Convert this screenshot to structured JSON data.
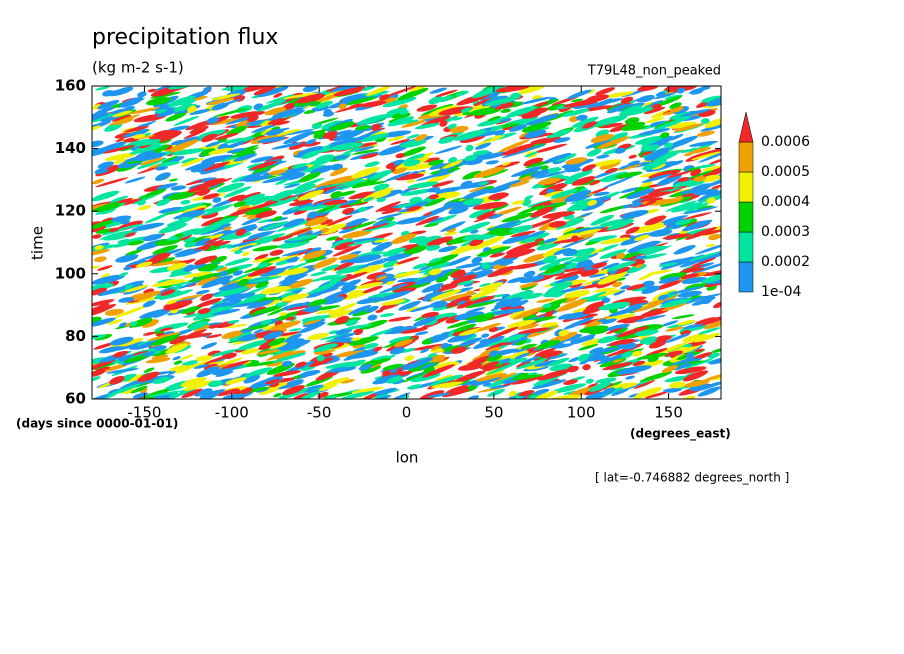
{
  "chart_data": {
    "type": "contour",
    "title": "precipitation flux",
    "subtitle": "(kg m-2 s-1)",
    "run_label": "T79L48_non_peaked",
    "xlabel": "lon",
    "ylabel": "time",
    "y_units": "(days since 0000-01-01)",
    "x_units": "(degrees_east)",
    "annotation": "[ lat=-0.746882 degrees_north ]",
    "xlim": [
      -180,
      180
    ],
    "xticks": [
      -150,
      -100,
      -50,
      0,
      50,
      100,
      150
    ],
    "ylim": [
      60,
      160
    ],
    "yticks": [
      60,
      80,
      100,
      120,
      140,
      160
    ],
    "levels": [
      {
        "value": 0.0001,
        "label": "1e-04"
      },
      0.0002,
      0.0003,
      0.0004,
      0.0005,
      0.0006
    ],
    "colors": [
      "#1e96f0",
      "#00e6a0",
      "#00d200",
      "#f0f000",
      "#f0a000",
      "#f02828"
    ]
  }
}
